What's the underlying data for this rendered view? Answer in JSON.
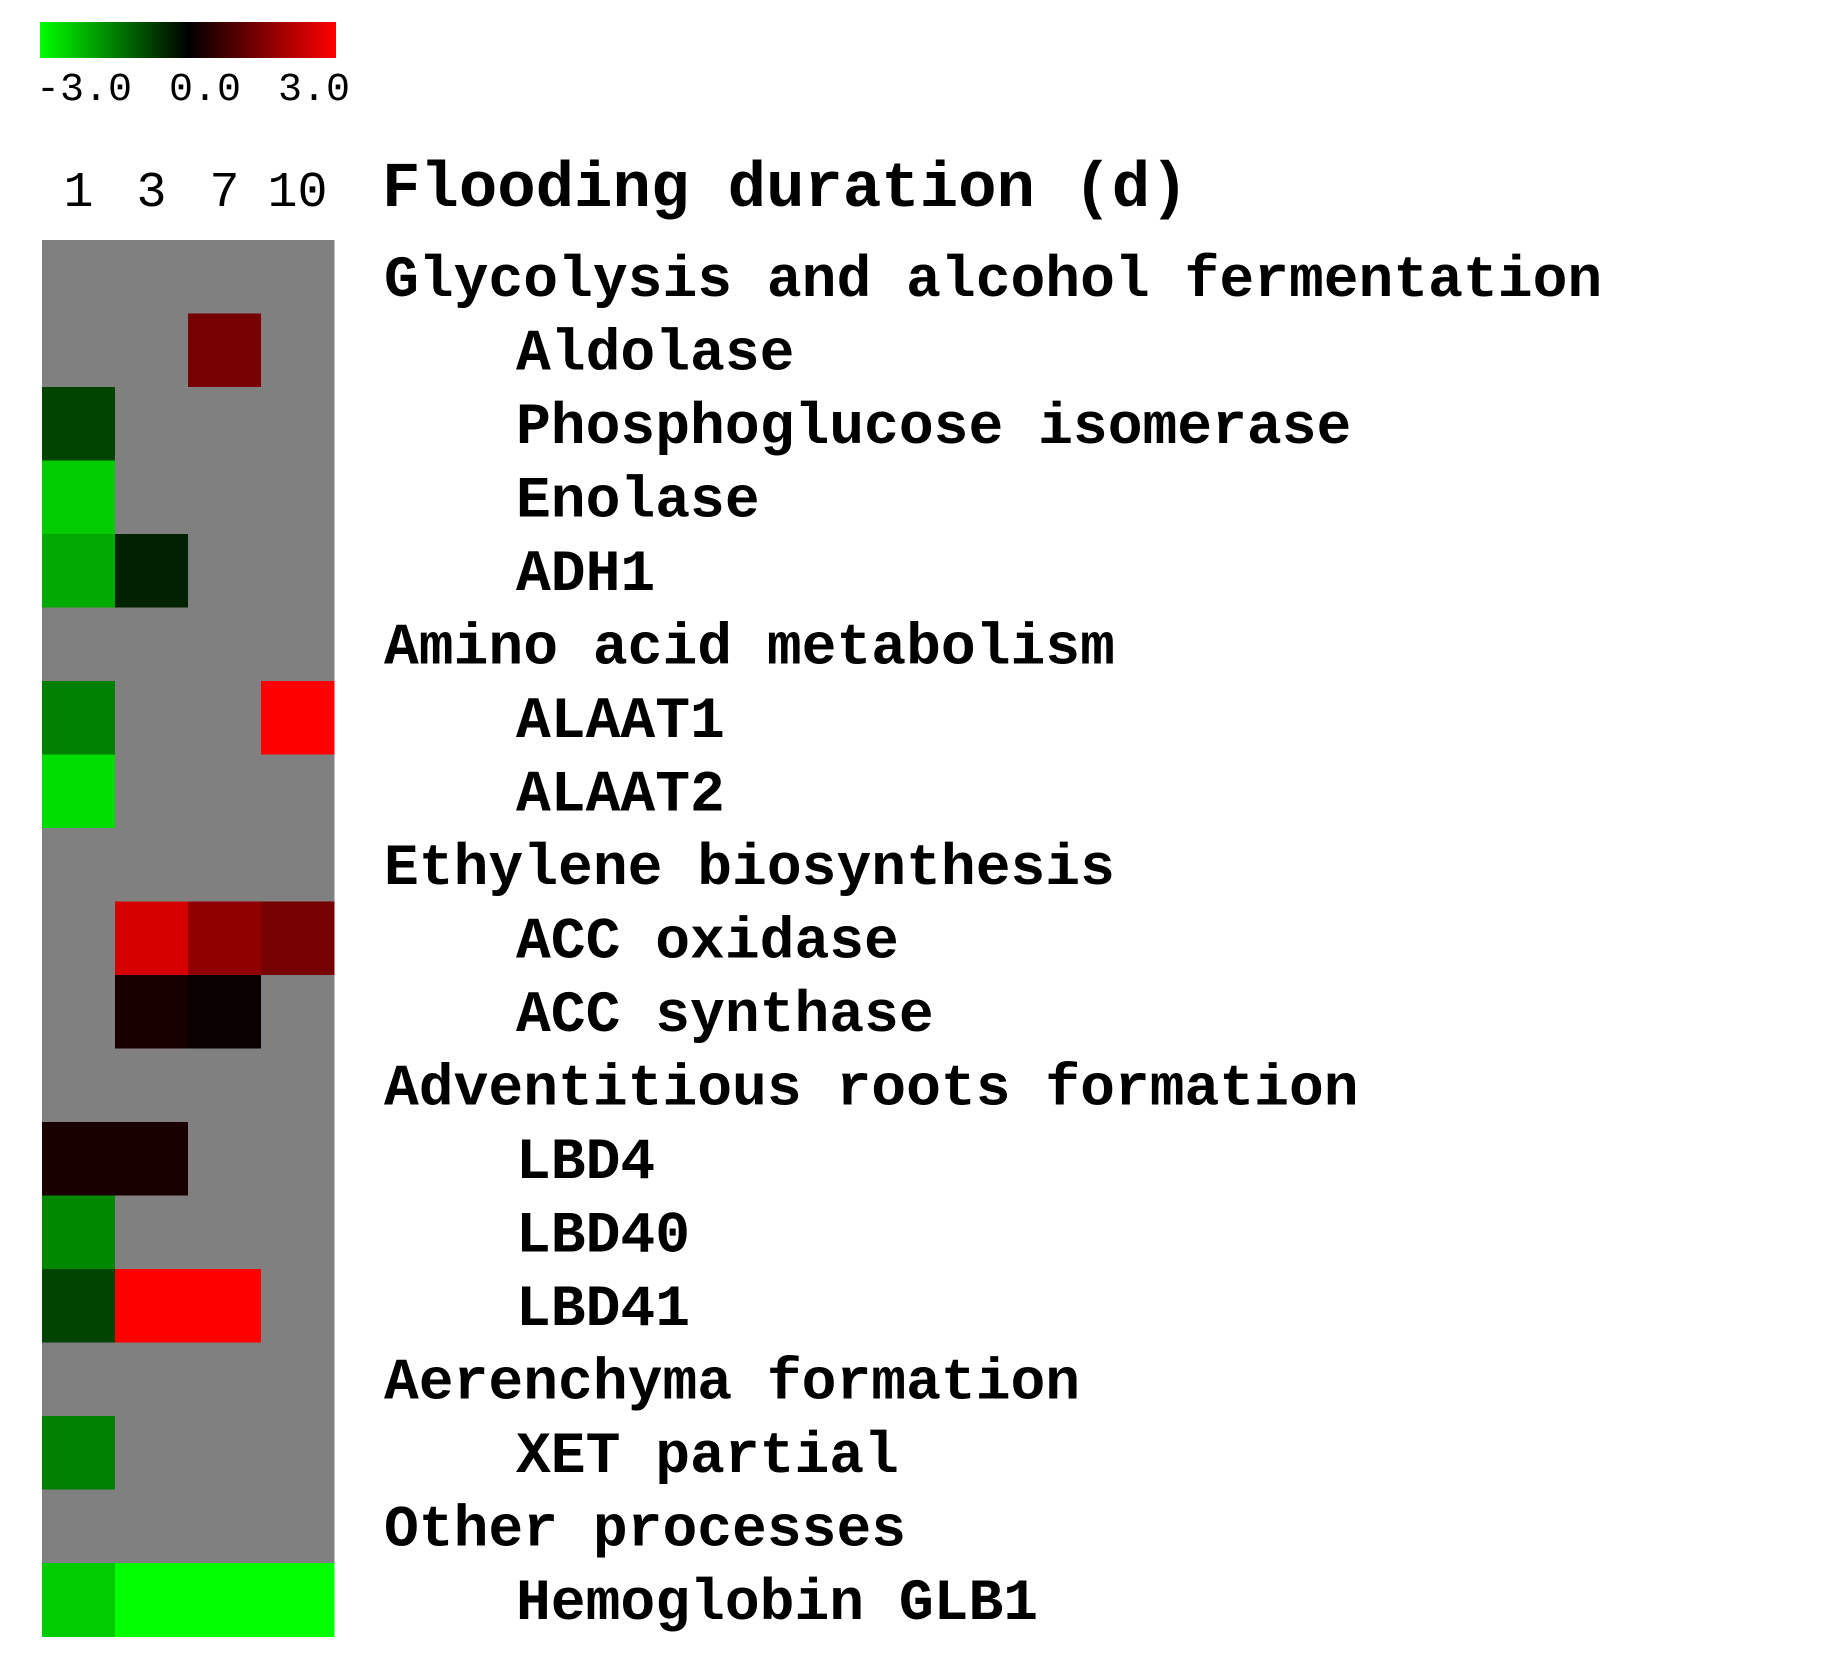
{
  "chart_data": {
    "type": "heatmap",
    "colorscale": {
      "min": -3.0,
      "mid": 0.0,
      "max": 3.0,
      "tick_labels": [
        "-3.0",
        "0.0",
        "3.0"
      ],
      "low_color": "#00ff00",
      "mid_color": "#000000",
      "high_color": "#ff0000",
      "missing_color": "#808080"
    },
    "columns": [
      "1",
      "3",
      "7",
      "10"
    ],
    "column_title": "Flooding duration (d)",
    "rows": [
      {
        "label": "Glycolysis and alcohol fermentation",
        "category": true,
        "values": [
          null,
          null,
          null,
          null
        ]
      },
      {
        "label": "Aldolase",
        "category": false,
        "values": [
          null,
          null,
          1.4,
          null
        ]
      },
      {
        "label": "Phosphoglucose isomerase",
        "category": false,
        "values": [
          -0.8,
          null,
          null,
          null
        ]
      },
      {
        "label": "Enolase",
        "category": false,
        "values": [
          -2.4,
          null,
          null,
          null
        ]
      },
      {
        "label": "ADH1",
        "category": false,
        "values": [
          -2.0,
          -0.4,
          null,
          null
        ]
      },
      {
        "label": "Amino acid metabolism",
        "category": true,
        "values": [
          null,
          null,
          null,
          null
        ]
      },
      {
        "label": "ALAAT1",
        "category": false,
        "values": [
          -1.5,
          null,
          null,
          3.0
        ]
      },
      {
        "label": "ALAAT2",
        "category": false,
        "values": [
          -2.6,
          null,
          null,
          null
        ]
      },
      {
        "label": "Ethylene biosynthesis",
        "category": true,
        "values": [
          null,
          null,
          null,
          null
        ]
      },
      {
        "label": "ACC oxidase",
        "category": false,
        "values": [
          null,
          2.5,
          1.7,
          1.4
        ]
      },
      {
        "label": "ACC synthase",
        "category": false,
        "values": [
          null,
          0.3,
          0.1,
          null
        ]
      },
      {
        "label": "Adventitious roots formation",
        "category": true,
        "values": [
          null,
          null,
          null,
          null
        ]
      },
      {
        "label": "LBD4",
        "category": false,
        "values": [
          0.3,
          0.3,
          null,
          null
        ]
      },
      {
        "label": "LBD40",
        "category": false,
        "values": [
          -1.6,
          null,
          null,
          null
        ]
      },
      {
        "label": "LBD41",
        "category": false,
        "values": [
          -0.8,
          3.0,
          3.0,
          null
        ]
      },
      {
        "label": "Aerenchyma formation",
        "category": true,
        "values": [
          null,
          null,
          null,
          null
        ]
      },
      {
        "label": "XET partial",
        "category": false,
        "values": [
          -1.5,
          null,
          null,
          null
        ]
      },
      {
        "label": "Other processes",
        "category": true,
        "values": [
          null,
          null,
          null,
          null
        ]
      },
      {
        "label": "Hemoglobin GLB1",
        "category": false,
        "values": [
          -2.4,
          -3.0,
          -3.0,
          -3.0
        ]
      }
    ]
  }
}
